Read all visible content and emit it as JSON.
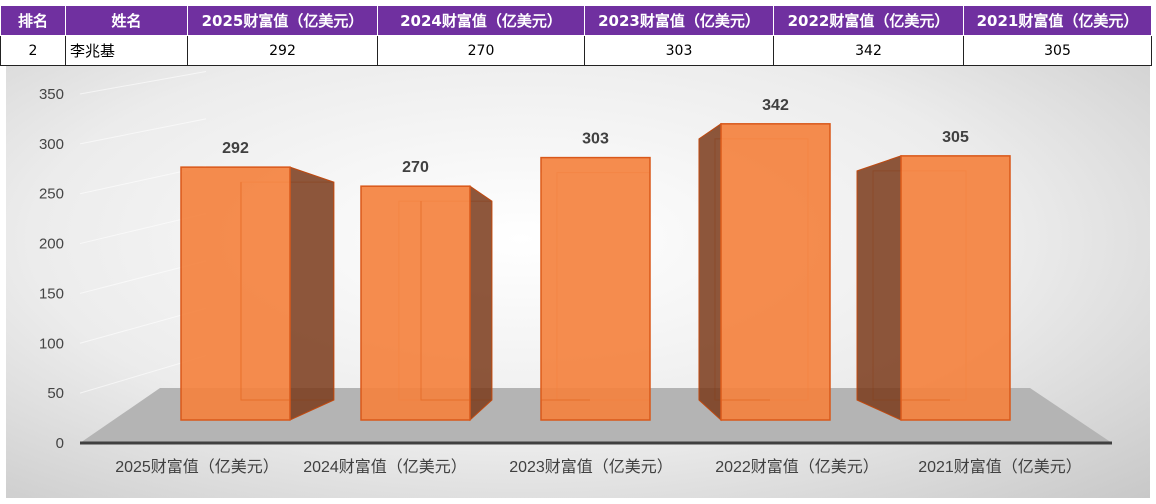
{
  "table": {
    "headers": [
      "排名",
      "姓名",
      "2025财富值（亿美元）",
      "2024财富值（亿美元）",
      "2023财富值（亿美元）",
      "2022财富值（亿美元）",
      "2021财富值（亿美元）"
    ],
    "row": [
      "2",
      "李兆基",
      "292",
      "270",
      "303",
      "342",
      "305"
    ]
  },
  "chart_data": {
    "type": "bar",
    "style": "3d-column",
    "categories": [
      "2025财富值（亿美元）",
      "2024财富值（亿美元）",
      "2023财富值（亿美元）",
      "2022财富值（亿美元）",
      "2021财富值（亿美元）"
    ],
    "values": [
      292,
      270,
      303,
      342,
      305
    ],
    "data_labels": [
      "292",
      "270",
      "303",
      "342",
      "305"
    ],
    "yticks": [
      "0",
      "50",
      "100",
      "150",
      "200",
      "250",
      "300",
      "350"
    ],
    "ylim": [
      0,
      350
    ],
    "grid": true,
    "legend": "none",
    "bar_color": "#f4823f"
  }
}
